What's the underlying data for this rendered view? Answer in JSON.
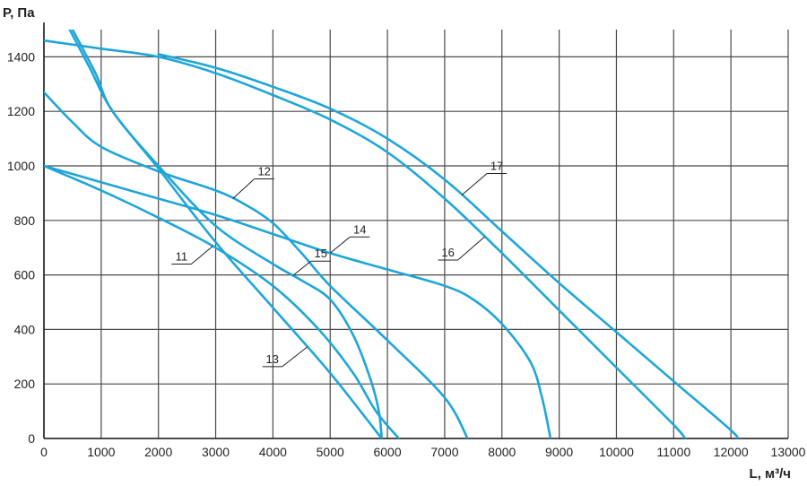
{
  "chart_data": {
    "type": "line",
    "xlabel": "L, м³/ч",
    "ylabel": "P, Па",
    "xlim": [
      0,
      13000
    ],
    "ylim": [
      0,
      1500
    ],
    "xticks": [
      0,
      1000,
      2000,
      3000,
      4000,
      5000,
      6000,
      7000,
      8000,
      9000,
      10000,
      11000,
      12000,
      13000
    ],
    "yticks": [
      0,
      200,
      400,
      600,
      800,
      1000,
      1200,
      1400
    ],
    "grid": true,
    "line_color": "#1ea6d8",
    "series": [
      {
        "name": "11",
        "points": [
          [
            0,
            1000
          ],
          [
            1000,
            910
          ],
          [
            2000,
            810
          ],
          [
            3000,
            700
          ],
          [
            4000,
            560
          ],
          [
            4800,
            400
          ],
          [
            5400,
            240
          ],
          [
            5800,
            100
          ],
          [
            6200,
            0
          ]
        ]
      },
      {
        "name": "12",
        "points": [
          [
            0,
            1270
          ],
          [
            500,
            1160
          ],
          [
            1000,
            1070
          ],
          [
            2000,
            980
          ],
          [
            3000,
            910
          ],
          [
            3500,
            860
          ],
          [
            4000,
            790
          ],
          [
            4500,
            680
          ],
          [
            5000,
            560
          ],
          [
            6000,
            360
          ],
          [
            7000,
            150
          ],
          [
            7400,
            0
          ]
        ]
      },
      {
        "name": "13",
        "points": [
          [
            450,
            1500
          ],
          [
            800,
            1360
          ],
          [
            1200,
            1200
          ],
          [
            2000,
            990
          ],
          [
            3000,
            720
          ],
          [
            4000,
            480
          ],
          [
            5000,
            240
          ],
          [
            5900,
            0
          ]
        ]
      },
      {
        "name": "14",
        "points": [
          [
            0,
            1000
          ],
          [
            1000,
            940
          ],
          [
            2000,
            880
          ],
          [
            3000,
            820
          ],
          [
            4000,
            750
          ],
          [
            5000,
            680
          ],
          [
            6000,
            620
          ],
          [
            7000,
            560
          ],
          [
            7500,
            510
          ],
          [
            8000,
            420
          ],
          [
            8500,
            280
          ],
          [
            8700,
            150
          ],
          [
            8850,
            0
          ]
        ]
      },
      {
        "name": "15",
        "points": [
          [
            500,
            1500
          ],
          [
            900,
            1340
          ],
          [
            1200,
            1200
          ],
          [
            2000,
            1000
          ],
          [
            3000,
            780
          ],
          [
            4000,
            640
          ],
          [
            4500,
            580
          ],
          [
            5000,
            510
          ],
          [
            5400,
            380
          ],
          [
            5700,
            220
          ],
          [
            5850,
            100
          ],
          [
            5900,
            0
          ]
        ]
      },
      {
        "name": "16",
        "points": [
          [
            0,
            1460
          ],
          [
            1000,
            1430
          ],
          [
            2000,
            1400
          ],
          [
            3000,
            1340
          ],
          [
            4000,
            1260
          ],
          [
            5000,
            1170
          ],
          [
            6000,
            1050
          ],
          [
            7000,
            880
          ],
          [
            8000,
            680
          ],
          [
            9000,
            470
          ],
          [
            10000,
            260
          ],
          [
            11000,
            50
          ],
          [
            11200,
            0
          ]
        ]
      },
      {
        "name": "17",
        "points": [
          [
            2000,
            1410
          ],
          [
            3000,
            1360
          ],
          [
            4000,
            1290
          ],
          [
            5000,
            1210
          ],
          [
            6000,
            1100
          ],
          [
            7000,
            950
          ],
          [
            8000,
            760
          ],
          [
            9000,
            570
          ],
          [
            10000,
            390
          ],
          [
            11000,
            210
          ],
          [
            12000,
            30
          ],
          [
            12100,
            0
          ]
        ]
      }
    ],
    "annotations": [
      {
        "text": "11",
        "series": "11",
        "at_x": 2950
      },
      {
        "text": "12",
        "series": "12",
        "at_x": 3300
      },
      {
        "text": "13",
        "series": "13",
        "at_x": 4600
      },
      {
        "text": "14",
        "series": "14",
        "at_x": 5000
      },
      {
        "text": "15",
        "series": "15",
        "at_x": 4350
      },
      {
        "text": "16",
        "series": "16",
        "at_x": 7700
      },
      {
        "text": "17",
        "series": "17",
        "at_x": 7300
      }
    ]
  }
}
